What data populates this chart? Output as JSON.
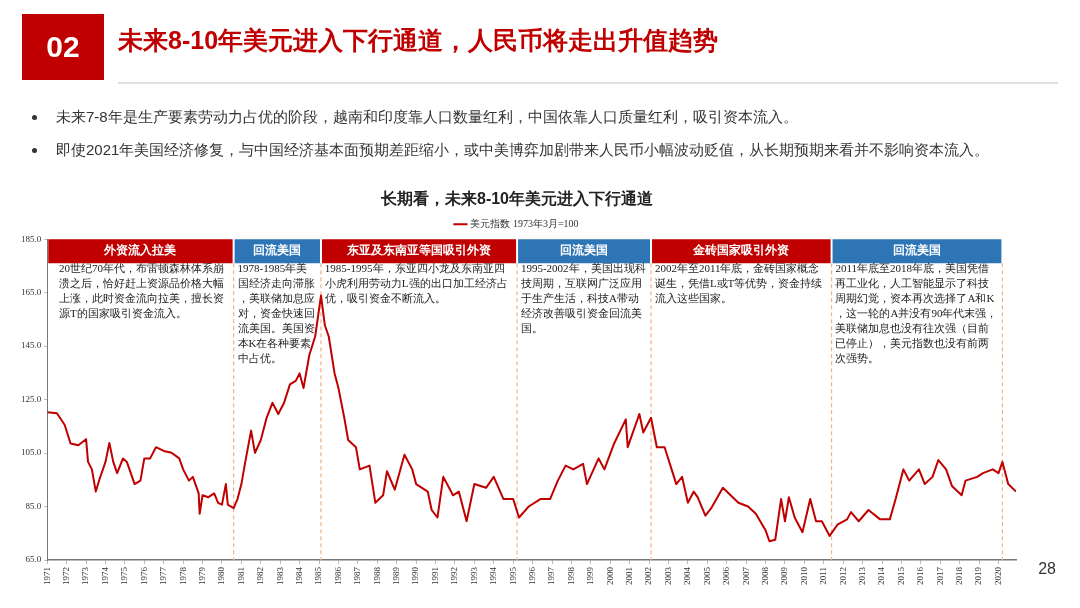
{
  "chart_data": {
    "type": "line",
    "title": "未来8-10年美元进入下行通道，人民币将走出升值趋势",
    "subtitle": "长期看，未来8-10年美元进入下行通道",
    "x": [
      1971.0,
      1971.5,
      1971.9,
      1972.2,
      1972.6,
      1973.0,
      1973.1,
      1973.3,
      1973.5,
      1973.7,
      1974.0,
      1974.2,
      1974.4,
      1974.6,
      1974.9,
      1975.1,
      1975.5,
      1975.8,
      1976.0,
      1976.3,
      1976.6,
      1977.0,
      1977.4,
      1977.8,
      1978.0,
      1978.3,
      1978.5,
      1978.8,
      1978.85,
      1979.0,
      1979.3,
      1979.6,
      1979.8,
      1980.0,
      1980.2,
      1980.3,
      1980.6,
      1980.8,
      1981.0,
      1981.2,
      1981.5,
      1981.7,
      1982.0,
      1982.3,
      1982.6,
      1982.9,
      1983.2,
      1983.5,
      1983.8,
      1984.0,
      1984.2,
      1984.5,
      1984.8,
      1985.1,
      1985.3,
      1985.5,
      1985.8,
      1986.0,
      1986.3,
      1986.5,
      1986.9,
      1987.1,
      1987.6,
      1987.9,
      1988.3,
      1988.5,
      1988.9,
      1989.4,
      1989.8,
      1990.0,
      1990.6,
      1990.8,
      1991.1,
      1991.4,
      1991.9,
      1992.2,
      1992.6,
      1993.0,
      1993.6,
      1994.0,
      1994.5,
      1995.0,
      1995.3,
      1995.8,
      1996.4,
      1996.9,
      1997.3,
      1997.7,
      1998.1,
      1998.6,
      1998.8,
      1999.4,
      1999.7,
      2000.2,
      2000.8,
      2000.9,
      2001.5,
      2001.7,
      2002.1,
      2002.4,
      2002.8,
      2003.1,
      2003.4,
      2003.7,
      2004.0,
      2004.3,
      2004.5,
      2004.9,
      2005.2,
      2005.8,
      2006.2,
      2006.6,
      2007.1,
      2007.5,
      2008.0,
      2008.2,
      2008.5,
      2008.8,
      2009.0,
      2009.2,
      2009.5,
      2009.9,
      2010.3,
      2010.6,
      2010.9,
      2011.3,
      2011.7,
      2012.2,
      2012.4,
      2012.8,
      2013.3,
      2013.9,
      2014.4,
      2014.7,
      2015.1,
      2015.4,
      2015.9,
      2016.2,
      2016.6,
      2016.9,
      2017.3,
      2017.6,
      2018.1,
      2018.3,
      2018.9,
      2019.2,
      2019.7,
      2020.0,
      2020.2,
      2020.5,
      2020.9
    ],
    "series": [
      {
        "name": "美元指数 1973年3月=100",
        "color": "#c00000",
        "values": [
          120.3,
          119.9,
          115.5,
          108.6,
          107.9,
          110.2,
          101.7,
          98.9,
          90.6,
          95.4,
          101.7,
          108.8,
          101.7,
          97.5,
          103.0,
          101.7,
          93.4,
          94.7,
          103.0,
          103.0,
          107.2,
          105.8,
          105.1,
          103.0,
          98.9,
          94.7,
          96.1,
          89.9,
          82.3,
          89.2,
          88.5,
          89.9,
          86.4,
          85.7,
          93.4,
          85.7,
          84.4,
          87.8,
          93.4,
          101.7,
          113.4,
          105.1,
          109.9,
          118.2,
          123.8,
          119.6,
          123.8,
          130.7,
          132.0,
          134.8,
          129.3,
          141.7,
          148.6,
          163.9,
          152.8,
          148.6,
          134.8,
          129.3,
          118.2,
          109.9,
          107.2,
          98.9,
          100.3,
          86.4,
          89.2,
          98.2,
          91.3,
          104.4,
          98.9,
          93.4,
          90.6,
          83.7,
          80.9,
          96.1,
          89.2,
          90.6,
          79.5,
          93.4,
          92.0,
          96.1,
          87.8,
          87.8,
          80.9,
          85.0,
          87.8,
          87.8,
          94.7,
          100.3,
          98.9,
          101.0,
          93.4,
          103.0,
          98.9,
          108.6,
          117.6,
          107.2,
          119.6,
          112.7,
          118.2,
          107.2,
          107.2,
          100.3,
          93.4,
          96.1,
          86.4,
          90.6,
          88.5,
          81.6,
          84.4,
          92.0,
          89.2,
          86.4,
          85.0,
          82.3,
          76.1,
          72.0,
          72.6,
          87.8,
          79.5,
          88.5,
          80.9,
          75.4,
          87.8,
          79.5,
          79.5,
          74.0,
          78.2,
          80.2,
          82.9,
          79.5,
          83.7,
          80.2,
          80.2,
          87.8,
          98.9,
          94.7,
          98.9,
          93.4,
          96.1,
          102.4,
          98.9,
          92.7,
          89.2,
          94.7,
          96.1,
          97.5,
          98.9,
          97.5,
          101.7,
          93.4,
          90.6
        ]
      }
    ],
    "xlim": [
      1971,
      2020.9
    ],
    "xticks": [
      1971,
      1972,
      1973,
      1974,
      1975,
      1976,
      1977,
      1978,
      1979,
      1980,
      1981,
      1982,
      1983,
      1984,
      1985,
      1986,
      1987,
      1988,
      1989,
      1990,
      1991,
      1992,
      1993,
      1994,
      1995,
      1996,
      1997,
      1998,
      1999,
      2000,
      2001,
      2002,
      2003,
      2004,
      2005,
      2006,
      2007,
      2008,
      2009,
      2010,
      2011,
      2012,
      2013,
      2014,
      2015,
      2016,
      2017,
      2018,
      2019,
      2020
    ],
    "ylim": [
      65,
      185
    ],
    "yticks": [
      {
        "value": 65,
        "label": "65.0"
      },
      {
        "value": 85,
        "label": "85.0"
      },
      {
        "value": 105,
        "label": "105.0"
      },
      {
        "value": 125,
        "label": "125.0"
      },
      {
        "value": 145,
        "label": "145.0"
      },
      {
        "value": 165,
        "label": "165.0"
      },
      {
        "value": 185,
        "label": "185.0"
      }
    ],
    "legend": "top",
    "marker": "none",
    "line_style": "solid",
    "bands": [
      {
        "axis": "x",
        "from": 1971,
        "to": 1980.6,
        "label": "外资流入拉美",
        "color": "#c00000"
      },
      {
        "axis": "x",
        "from": 1980.6,
        "to": 1985.1,
        "label": "回流美国",
        "color": "#2e75b6"
      },
      {
        "axis": "x",
        "from": 1985.1,
        "to": 1995.2,
        "label": "东亚及东南亚等国吸引外资",
        "color": "#c00000"
      },
      {
        "axis": "x",
        "from": 1995.2,
        "to": 2002.1,
        "label": "回流美国",
        "color": "#2e75b6"
      },
      {
        "axis": "x",
        "from": 2002.1,
        "to": 2011.4,
        "label": "金砖国家吸引外资",
        "color": "#c00000"
      },
      {
        "axis": "x",
        "from": 2011.4,
        "to": 2020.2,
        "label": "回流美国",
        "color": "#2e75b6"
      }
    ],
    "ref_lines": [
      {
        "axis": "x",
        "value": 1980.6,
        "color": "#f4b183",
        "line_style": "dashed"
      },
      {
        "axis": "x",
        "value": 1985.1,
        "color": "#f4b183",
        "line_style": "dashed"
      },
      {
        "axis": "x",
        "value": 1995.2,
        "color": "#f4b183",
        "line_style": "dashed"
      },
      {
        "axis": "x",
        "value": 2002.1,
        "color": "#f4b183",
        "line_style": "dashed"
      },
      {
        "axis": "x",
        "value": 2011.4,
        "color": "#f4b183",
        "line_style": "dashed"
      },
      {
        "axis": "x",
        "value": 2020.2,
        "color": "#f4b183",
        "line_style": "dashed"
      }
    ],
    "annotations": [
      "02",
      "未来7-8年是生产要素劳动力占优的阶段，越南和印度靠人口数量红利，中国依靠人口质量红利，吸引资本流入。",
      "即使2021年美国经济修复，与中国经济基本面预期差距缩小，或中美博弈加剧带来人民币小幅波动贬值，从长期预期来看并不影响资本流入。",
      {
        "text": "20世纪70年代，布雷顿森林体系崩溃之后，恰好赶上资源品价格大幅上涨，此时资金流向拉美，擅长资源T的国家吸引资金流入。",
        "x": 1971.6,
        "y": 176
      },
      {
        "text": "1978-1985年美国经济走向滞胀，美联储加息应对，资金快速回流美国。美国资本K在各种要素中占优。",
        "x": 1980.8,
        "y": 176
      },
      {
        "text": "1985-1995年，东亚四小龙及东南亚四小虎利用劳动力L强的出口加工经济占优，吸引资金不断流入。",
        "x": 1985.3,
        "y": 176
      },
      {
        "text": "1995-2002年，美国出现科技周期，互联网广泛应用于生产生活，科技A带动经济改善吸引资金回流美国。",
        "x": 1995.4,
        "y": 176
      },
      {
        "text": "2002年至2011年底，金砖国家概念诞生，凭借L或T等优势，资金持续流入这些国家。",
        "x": 2002.3,
        "y": 176
      },
      {
        "text": "2011年底至2018年底，美国凭借再工业化，人工智能显示了科技周期幻觉，资本再次选择了A和K，这一轮的A并没有90年代末强，美联储加息也没有往次强（目前已停止），美元指数也没有前两次强势。",
        "x": 2011.6,
        "y": 176
      },
      "28"
    ]
  }
}
